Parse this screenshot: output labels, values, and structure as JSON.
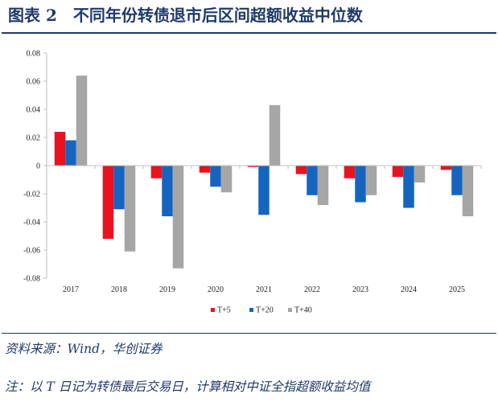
{
  "header": {
    "title": "图表 2　不同年份转债退市后区间超额收益中位数"
  },
  "footer": {
    "source": "资料来源：Wind，华创证券",
    "note": "注：以 T 日记为转债最后交易日，计算相对中证全指超额收益均值"
  },
  "colors": {
    "accent": "#1f3a68"
  },
  "chart_data": {
    "type": "bar",
    "title": "",
    "xlabel": "",
    "ylabel": "",
    "categories": [
      "2017",
      "2018",
      "2019",
      "2020",
      "2021",
      "2022",
      "2023",
      "2024",
      "2025"
    ],
    "series": [
      {
        "name": "T+5",
        "color": "#e8131f",
        "values": [
          0.024,
          -0.052,
          -0.009,
          -0.005,
          -0.001,
          -0.006,
          -0.009,
          -0.008,
          -0.003
        ]
      },
      {
        "name": "T+20",
        "color": "#1565c0",
        "values": [
          0.018,
          -0.031,
          -0.036,
          -0.015,
          -0.035,
          -0.021,
          -0.026,
          -0.03,
          -0.021
        ]
      },
      {
        "name": "T+40",
        "color": "#a6a6a6",
        "values": [
          0.064,
          -0.061,
          -0.073,
          -0.019,
          0.043,
          -0.028,
          -0.021,
          -0.012,
          -0.036
        ]
      }
    ],
    "ylim": [
      -0.08,
      0.08
    ],
    "yticks": [
      "0.08",
      "0.06",
      "0.04",
      "0.02",
      "0",
      "-0.02",
      "-0.04",
      "-0.06",
      "-0.08"
    ],
    "grid": false,
    "legend": "bottom-center"
  }
}
